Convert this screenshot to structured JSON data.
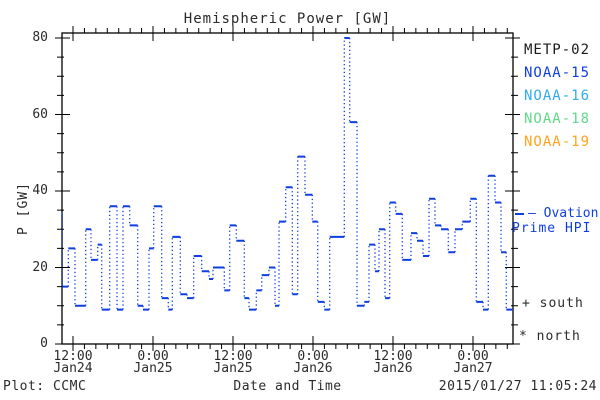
{
  "header": {
    "title": "Hemispheric Power [GW]"
  },
  "legend": {
    "items": [
      {
        "label": "METP-02",
        "color": "#1a1a1a"
      },
      {
        "label": "NOAA-15",
        "color": "#0f3fe0"
      },
      {
        "label": "NOAA-16",
        "color": "#2fabef"
      },
      {
        "label": "NOAA-18",
        "color": "#5fd98a"
      },
      {
        "label": "NOAA-19",
        "color": "#ffa41e"
      }
    ]
  },
  "annotations": {
    "ovation_line1": "— Ovation",
    "ovation_line2": "Prime HPI",
    "ovation_marker_gw": 34,
    "south_marker": "+ south",
    "north_marker": "* north"
  },
  "footer": {
    "credit": "Plot: CCMC",
    "timestamp": "2015/01/27 11:05:24"
  },
  "chart_data": {
    "type": "line",
    "subtype": "step-histogram",
    "title": "Hemispheric Power [GW]",
    "xlabel": "Date and Time",
    "ylabel": "P [GW]",
    "ylim": [
      0,
      80
    ],
    "y_major_ticks": [
      0,
      20,
      40,
      60,
      80
    ],
    "y_minor_step": 5,
    "grid": "off",
    "legend_position": "right-outside",
    "x_axis": {
      "start_h": -1.65,
      "end_h": 66.0,
      "hours_per_major": 12,
      "minor_divisions": 7,
      "major_ticks": [
        {
          "h": 0,
          "time": "12:00",
          "date": "Jan24"
        },
        {
          "h": 12,
          "time": "0:00",
          "date": "Jan25"
        },
        {
          "h": 24,
          "time": "12:00",
          "date": "Jan25"
        },
        {
          "h": 36,
          "time": "0:00",
          "date": "Jan26"
        },
        {
          "h": 48,
          "time": "12:00",
          "date": "Jan26"
        },
        {
          "h": 60,
          "time": "0:00",
          "date": "Jan27"
        }
      ]
    },
    "series": [
      {
        "name": "Ovation Prime HPI",
        "color": "#0f3fe0",
        "units": "GW",
        "steps_h_gw": [
          [
            -1.7,
            34
          ],
          [
            -1.6,
            15
          ],
          [
            -0.7,
            25
          ],
          [
            0.3,
            10
          ],
          [
            1.9,
            30
          ],
          [
            2.7,
            22
          ],
          [
            3.7,
            26
          ],
          [
            4.3,
            9
          ],
          [
            5.5,
            36
          ],
          [
            6.6,
            9
          ],
          [
            7.5,
            36
          ],
          [
            8.5,
            31
          ],
          [
            9.7,
            10
          ],
          [
            10.5,
            9
          ],
          [
            11.4,
            25
          ],
          [
            12.1,
            36
          ],
          [
            13.3,
            12
          ],
          [
            14.3,
            9
          ],
          [
            14.9,
            28
          ],
          [
            16.1,
            13
          ],
          [
            17.1,
            12
          ],
          [
            18.1,
            23
          ],
          [
            19.3,
            19
          ],
          [
            20.4,
            17
          ],
          [
            21.0,
            20
          ],
          [
            22.7,
            14
          ],
          [
            23.5,
            31
          ],
          [
            24.5,
            27
          ],
          [
            25.7,
            12
          ],
          [
            26.4,
            9
          ],
          [
            27.5,
            14
          ],
          [
            28.3,
            18
          ],
          [
            29.4,
            20
          ],
          [
            30.3,
            10
          ],
          [
            30.9,
            32
          ],
          [
            31.9,
            41
          ],
          [
            32.9,
            13
          ],
          [
            33.7,
            49
          ],
          [
            34.8,
            39
          ],
          [
            35.9,
            32
          ],
          [
            36.7,
            11
          ],
          [
            37.7,
            9
          ],
          [
            38.5,
            28
          ],
          [
            40.7,
            80
          ],
          [
            41.5,
            58
          ],
          [
            42.6,
            10
          ],
          [
            43.7,
            11
          ],
          [
            44.4,
            26
          ],
          [
            45.3,
            19
          ],
          [
            45.9,
            30
          ],
          [
            46.8,
            12
          ],
          [
            47.5,
            37
          ],
          [
            48.4,
            34
          ],
          [
            49.4,
            22
          ],
          [
            50.7,
            29
          ],
          [
            51.6,
            27
          ],
          [
            52.5,
            23
          ],
          [
            53.4,
            38
          ],
          [
            54.3,
            31
          ],
          [
            55.2,
            30
          ],
          [
            56.3,
            24
          ],
          [
            57.3,
            30
          ],
          [
            58.4,
            32
          ],
          [
            59.6,
            38
          ],
          [
            60.5,
            11
          ],
          [
            61.5,
            9
          ],
          [
            62.3,
            44
          ],
          [
            63.3,
            37
          ],
          [
            64.2,
            24
          ],
          [
            65.0,
            9
          ]
        ],
        "end_h": 66.0
      }
    ]
  }
}
